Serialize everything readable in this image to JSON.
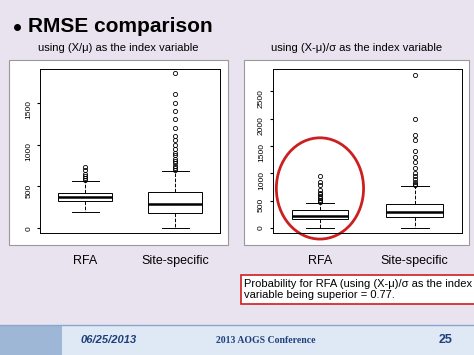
{
  "slide": {
    "title": "RMSE comparison",
    "note": "Probability for RFA (using (X-μ)/σ as the index variable being superior = 0.77.",
    "footer": {
      "date": "06/25/2013",
      "conference": "2013 AOGS Conference",
      "page": "25"
    }
  },
  "chart_data": [
    {
      "type": "box",
      "title": "using (X/μ) as the index variable",
      "categories": [
        "RFA",
        "Site-specific"
      ],
      "values": [
        {
          "whislo": 200,
          "q1": 330,
          "med": 370,
          "q3": 420,
          "whishi": 560,
          "fliers": [
            580,
            600,
            620,
            650,
            700,
            730
          ]
        },
        {
          "whislo": 0,
          "q1": 180,
          "med": 290,
          "q3": 430,
          "whishi": 680,
          "fliers": [
            700,
            720,
            750,
            780,
            800,
            830,
            870,
            900,
            950,
            1000,
            1050,
            1100,
            1200,
            1300,
            1400,
            1500,
            1600,
            1850
          ]
        }
      ],
      "ylim": [
        -50,
        1900
      ],
      "yticks": [
        0,
        500,
        1000,
        1500
      ],
      "color": "#ffffff"
    },
    {
      "type": "box",
      "title": "using (X-μ)/σ as the index variable",
      "categories": [
        "RFA",
        "Site-specific"
      ],
      "values": [
        {
          "whislo": 0,
          "q1": 170,
          "med": 230,
          "q3": 330,
          "whishi": 460,
          "fliers": [
            480,
            500,
            520,
            550,
            580,
            620,
            650,
            700,
            780,
            850,
            950
          ]
        },
        {
          "whislo": 0,
          "q1": 210,
          "med": 300,
          "q3": 440,
          "whishi": 760,
          "fliers": [
            780,
            800,
            850,
            900,
            950,
            1000,
            1100,
            1200,
            1300,
            1400,
            1600,
            1700,
            2000,
            2800
          ]
        }
      ],
      "ylim": [
        -80,
        2900
      ],
      "yticks": [
        0,
        500,
        1000,
        1500,
        2000,
        2500
      ],
      "color": "#ffffff"
    }
  ]
}
